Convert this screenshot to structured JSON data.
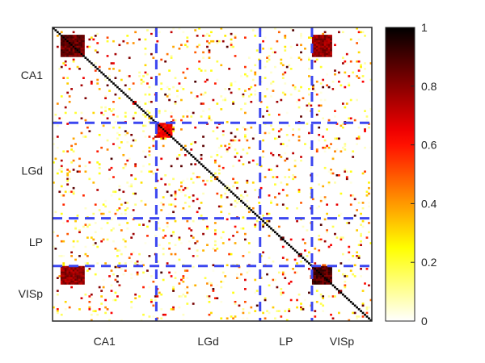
{
  "chart_data": {
    "type": "heatmap",
    "title": "",
    "xlabel": "",
    "ylabel": "",
    "matrix_size": 160,
    "regions": [
      {
        "name": "CA1",
        "start": 0,
        "end": 52
      },
      {
        "name": "LGd",
        "start": 52,
        "end": 104
      },
      {
        "name": "LP",
        "start": 104,
        "end": 130
      },
      {
        "name": "VISp",
        "start": 130,
        "end": 160
      }
    ],
    "boundaries": [
      52,
      104,
      130
    ],
    "boundary_style": "dashed blue",
    "colormap": "hot (reversed, white=0 to black=1)",
    "colorbar": {
      "range": [
        0,
        1
      ],
      "ticks": [
        0,
        0.2,
        0.4,
        0.6,
        0.8,
        1
      ],
      "tick_labels": [
        "0",
        "0.2",
        "0.4",
        "0.6",
        "0.8",
        "1"
      ]
    },
    "diagonal_value": 1,
    "blocks": [
      {
        "rows": [
          4,
          16
        ],
        "cols": [
          4,
          16
        ],
        "value": 0.92
      },
      {
        "rows": [
          130,
          140
        ],
        "cols": [
          130,
          140
        ],
        "value": 0.95
      },
      {
        "rows": [
          4,
          16
        ],
        "cols": [
          130,
          140
        ],
        "value": 0.85
      },
      {
        "rows": [
          130,
          140
        ],
        "cols": [
          4,
          16
        ],
        "value": 0.85
      },
      {
        "rows": [
          52,
          60
        ],
        "cols": [
          52,
          60
        ],
        "value": 0.7
      }
    ],
    "grid": false,
    "legend": "colorbar-right"
  }
}
